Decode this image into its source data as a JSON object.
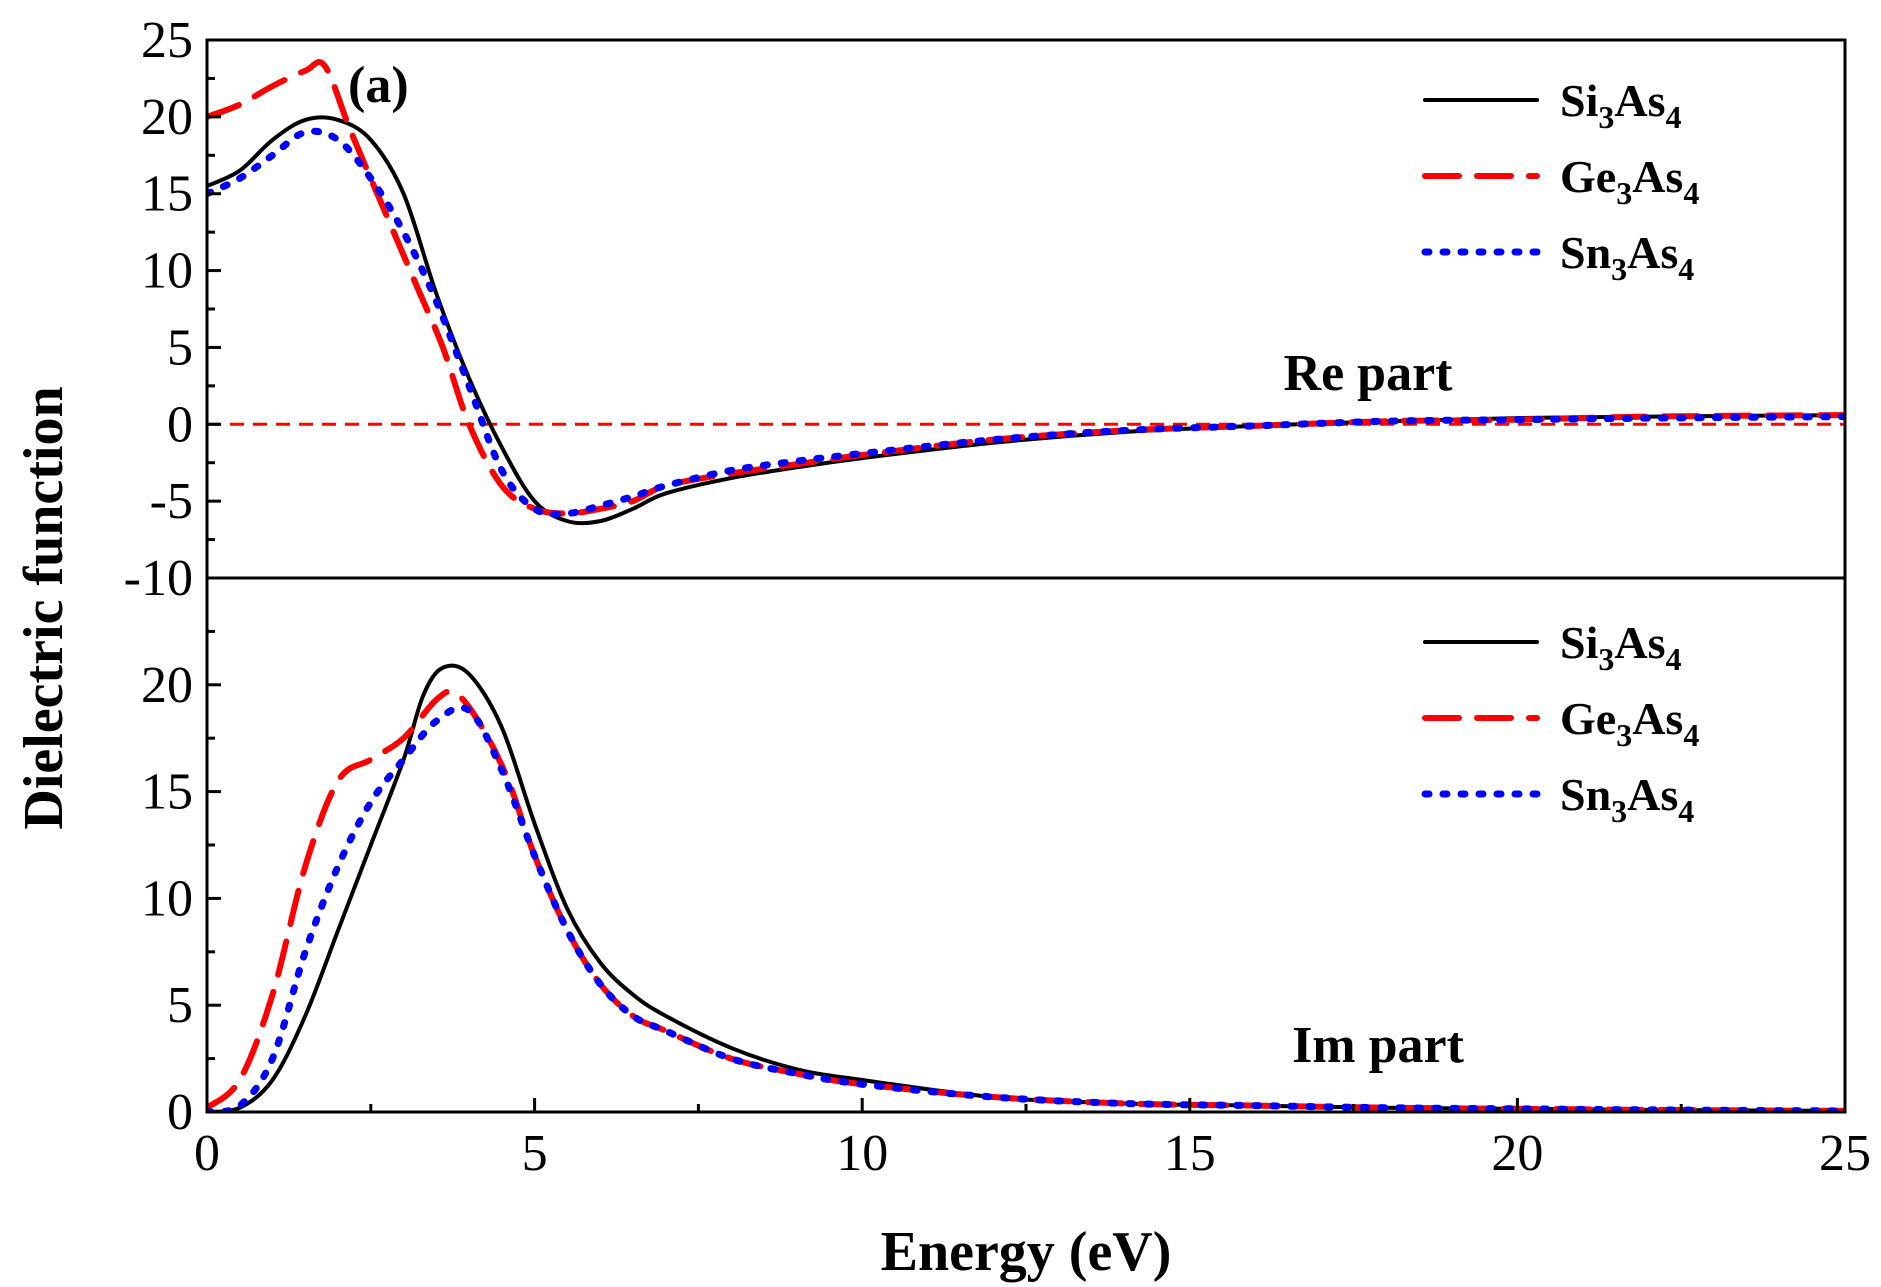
{
  "chart_data": {
    "type": "line",
    "title": "",
    "xlabel": "Energy (eV)",
    "ylabel": "Dielectric function",
    "xlim": [
      0,
      25
    ],
    "x_ticks": [
      "0",
      "5",
      "10",
      "15",
      "20",
      "25"
    ],
    "colors": {
      "Si3As4": "#000000",
      "Ge3As4": "#ff0000",
      "Sn3As4": "#0000ff"
    },
    "panels": [
      {
        "id": "re",
        "label": "Re part",
        "panel_label": "(a)",
        "ylim": [
          -10,
          25
        ],
        "y_ticks": [
          "25",
          "20",
          "15",
          "10",
          "5",
          "0",
          "-5",
          "-10"
        ],
        "reference_line": 0,
        "legend": [
          {
            "key": "Si3As4",
            "base1": "Si",
            "sub1": "3",
            "base2": "As",
            "sub2": "4"
          },
          {
            "key": "Ge3As4",
            "base1": "Ge",
            "sub1": "3",
            "base2": "As",
            "sub2": "4"
          },
          {
            "key": "Sn3As4",
            "base1": "Sn",
            "sub1": "3",
            "base2": "As",
            "sub2": "4"
          }
        ],
        "series": [
          {
            "name": "Si3As4",
            "style": "solid",
            "x": [
              0,
              0.5,
              1,
              1.5,
              2,
              2.5,
              3,
              3.5,
              4,
              4.5,
              5,
              5.5,
              6,
              6.5,
              7,
              8,
              9,
              10,
              12,
              14,
              16,
              18,
              20,
              22,
              25
            ],
            "y": [
              15.5,
              16.5,
              18.5,
              19.8,
              19.8,
              18.5,
              15,
              8.5,
              3,
              -1.5,
              -5,
              -6.3,
              -6.3,
              -5.5,
              -4.5,
              -3.5,
              -2.8,
              -2.2,
              -1.2,
              -0.5,
              -0.1,
              0.2,
              0.4,
              0.5,
              0.6
            ]
          },
          {
            "name": "Ge3As4",
            "style": "dashed",
            "x": [
              0,
              0.5,
              1,
              1.5,
              1.8,
              2.2,
              2.8,
              3.2,
              3.6,
              4,
              4.5,
              5,
              5.5,
              6,
              6.5,
              7,
              8,
              9,
              10,
              12,
              14,
              16,
              18,
              20,
              22,
              25
            ],
            "y": [
              20,
              20.8,
              22,
              23,
              23.3,
              19,
              13,
              9,
              5,
              0,
              -4,
              -5.5,
              -5.8,
              -5.5,
              -5,
              -4,
              -3.2,
              -2.6,
              -2,
              -1,
              -0.4,
              -0.1,
              0.2,
              0.3,
              0.5,
              0.6
            ]
          },
          {
            "name": "Sn3As4",
            "style": "dotted",
            "x": [
              0,
              0.5,
              1,
              1.5,
              2,
              2.5,
              3,
              3.5,
              4,
              4.5,
              5,
              5.5,
              6,
              6.5,
              7,
              8,
              9,
              10,
              12,
              14,
              16,
              18,
              20,
              22,
              25
            ],
            "y": [
              15,
              16,
              17.5,
              19,
              18.5,
              16,
              12.5,
              8,
              2.5,
              -3,
              -5.5,
              -5.8,
              -5.3,
              -4.7,
              -4,
              -3,
              -2.4,
              -1.9,
              -1,
              -0.4,
              -0.1,
              0.2,
              0.3,
              0.4,
              0.5
            ]
          }
        ]
      },
      {
        "id": "im",
        "label": "Im part",
        "ylim": [
          0,
          25
        ],
        "y_ticks": [
          "20",
          "15",
          "10",
          "5",
          "0"
        ],
        "legend": [
          {
            "key": "Si3As4",
            "base1": "Si",
            "sub1": "3",
            "base2": "As",
            "sub2": "4"
          },
          {
            "key": "Ge3As4",
            "base1": "Ge",
            "sub1": "3",
            "base2": "As",
            "sub2": "4"
          },
          {
            "key": "Sn3As4",
            "base1": "Sn",
            "sub1": "3",
            "base2": "As",
            "sub2": "4"
          }
        ],
        "series": [
          {
            "name": "Si3As4",
            "style": "solid",
            "x": [
              0,
              0.5,
              1,
              1.5,
              2,
              2.5,
              3,
              3.3,
              3.6,
              4,
              4.5,
              5,
              5.5,
              6,
              6.5,
              7,
              8,
              9,
              10,
              12,
              14,
              16,
              18,
              20,
              22,
              25
            ],
            "y": [
              0,
              0.2,
              1.5,
              4.5,
              8.5,
              12.5,
              16.5,
              19.5,
              20.8,
              20.5,
              18,
              13.5,
              9.5,
              7,
              5.5,
              4.5,
              3,
              2,
              1.5,
              0.7,
              0.4,
              0.3,
              0.2,
              0.15,
              0.1,
              0.05
            ]
          },
          {
            "name": "Ge3As4",
            "style": "dashed",
            "x": [
              0,
              0.5,
              1,
              1.5,
              2,
              2.5,
              3,
              3.5,
              3.8,
              4.2,
              4.6,
              5,
              5.5,
              6,
              6.5,
              7,
              8,
              9,
              10,
              12,
              14,
              16,
              18,
              20,
              22,
              25
            ],
            "y": [
              0.2,
              1.5,
              5.5,
              11.5,
              15.5,
              16.5,
              17.5,
              19.3,
              19.6,
              18,
              15.5,
              12,
              8.5,
              6,
              4.5,
              3.8,
              2.5,
              1.8,
              1.3,
              0.7,
              0.4,
              0.3,
              0.2,
              0.15,
              0.1,
              0.05
            ]
          },
          {
            "name": "Sn3As4",
            "style": "dotted",
            "x": [
              0,
              0.5,
              1,
              1.5,
              2,
              2.5,
              3,
              3.5,
              4,
              4.5,
              5,
              5.5,
              6,
              6.5,
              7,
              8,
              9,
              10,
              12,
              14,
              16,
              18,
              20,
              22,
              25
            ],
            "y": [
              0,
              0.3,
              2.5,
              7.5,
              11.5,
              14.5,
              16.5,
              18.3,
              18.8,
              16,
              12,
              8.5,
              6,
              4.5,
              3.8,
              2.5,
              1.8,
              1.3,
              0.7,
              0.4,
              0.3,
              0.2,
              0.15,
              0.1,
              0.05
            ]
          }
        ]
      }
    ]
  }
}
